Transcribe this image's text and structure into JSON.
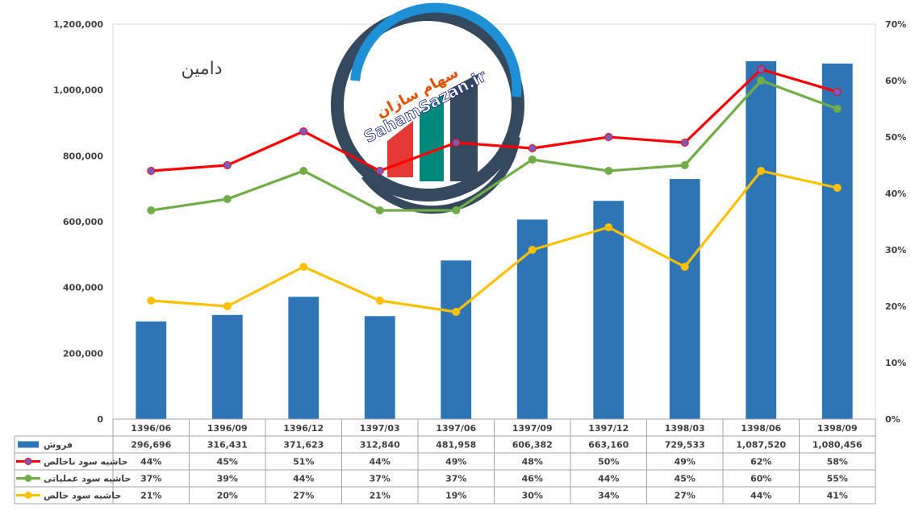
{
  "chart_data": {
    "type": "bar+line",
    "title": "دامین",
    "categories": [
      "1396/06",
      "1396/09",
      "1396/12",
      "1397/03",
      "1397/06",
      "1397/09",
      "1397/12",
      "1398/03",
      "1398/06",
      "1398/09"
    ],
    "bar_series": {
      "name": "فروش",
      "values": [
        296696,
        316431,
        371623,
        312840,
        481958,
        606382,
        663160,
        729533,
        1087520,
        1080456
      ],
      "labels": [
        "296,696",
        "316,431",
        "371,623",
        "312,840",
        "481,958",
        "606,382",
        "663,160",
        "729,533",
        "1,087,520",
        "1,080,456"
      ],
      "color": "#2e75b6"
    },
    "line_series": [
      {
        "name": "حاشیه سود ناخالص",
        "values": [
          44,
          45,
          51,
          44,
          49,
          48,
          50,
          49,
          62,
          58
        ],
        "labels": [
          "44%",
          "45%",
          "51%",
          "44%",
          "49%",
          "48%",
          "50%",
          "49%",
          "62%",
          "58%"
        ],
        "color": "#ff0000",
        "marker": "#7a5bbf"
      },
      {
        "name": "حاشیه سود عملیاتی",
        "values": [
          37,
          39,
          44,
          37,
          37,
          46,
          44,
          45,
          60,
          55
        ],
        "labels": [
          "37%",
          "39%",
          "44%",
          "37%",
          "37%",
          "46%",
          "44%",
          "45%",
          "60%",
          "55%"
        ],
        "color": "#70ad47",
        "marker": "#70ad47"
      },
      {
        "name": "حاشیه سود خالص",
        "values": [
          21,
          20,
          27,
          21,
          19,
          30,
          34,
          27,
          44,
          41
        ],
        "labels": [
          "21%",
          "20%",
          "27%",
          "21%",
          "19%",
          "30%",
          "34%",
          "27%",
          "44%",
          "41%"
        ],
        "color": "#ffc000",
        "marker": "#ffc000"
      }
    ],
    "y_left": {
      "min": 0,
      "max": 1200000,
      "ticks": [
        0,
        200000,
        400000,
        600000,
        800000,
        1000000,
        1200000
      ],
      "tick_labels": [
        "0",
        "200,000",
        "400,000",
        "600,000",
        "800,000",
        "1,000,000",
        "1,200,000"
      ]
    },
    "y_right": {
      "min": 0,
      "max": 70,
      "ticks": [
        0,
        10,
        20,
        30,
        40,
        50,
        60,
        70
      ],
      "tick_labels": [
        "0%",
        "10%",
        "20%",
        "30%",
        "40%",
        "50%",
        "60%",
        "70%"
      ]
    },
    "grid": false,
    "data_table": true,
    "watermark": {
      "text_fa": "سهام سازان",
      "text_en": "SahamSazan.ir"
    }
  }
}
